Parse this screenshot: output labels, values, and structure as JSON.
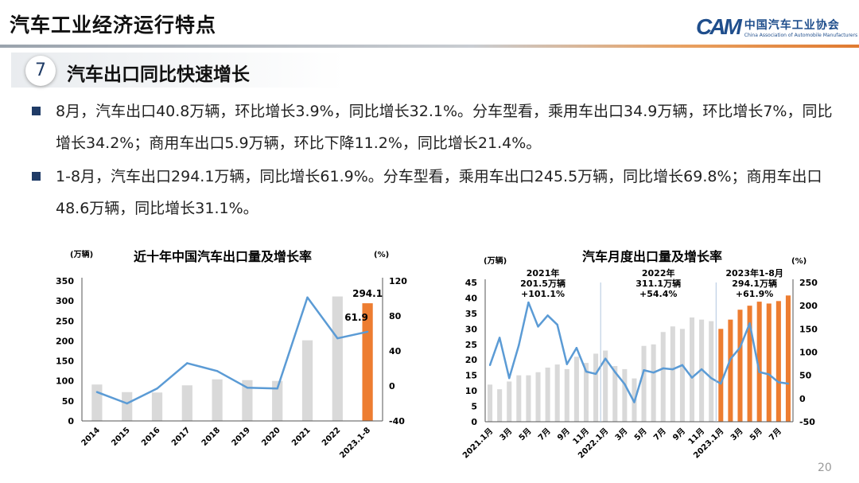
{
  "header": {
    "title": "汽车工业经济运行特点",
    "logo_cn": "中国汽车工业协会",
    "logo_en": "China Association of Automobile Manufacturers",
    "logo_mark": "CAM"
  },
  "section": {
    "number": "7",
    "title": "汽车出口同比快速增长"
  },
  "bullets": [
    "8月，汽车出口40.8万辆，环比增长3.9%，同比增长32.1%。分车型看，乘用车出口34.9万辆，环比增长7%，同比增长34.2%；商用车出口5.9万辆，环比下降11.2%，同比增长21.4%。",
    "1-8月，汽车出口294.1万辆，同比增长61.9%。分车型看，乘用车出口245.5万辆，同比增长69.8%；商用车出口48.6万辆，同比增长31.1%。"
  ],
  "page_number": "20",
  "colors": {
    "bar_gray": "#d9d9d9",
    "bar_orange": "#ed7d31",
    "line_blue": "#5b9bd5",
    "navy": "#1f3b66"
  },
  "chart_data": [
    {
      "type": "bar+line",
      "title": "近十年中国汽车出口量及增长率",
      "ylabel": "(万辆)",
      "y2label": "(%)",
      "categories": [
        "2014",
        "2015",
        "2016",
        "2017",
        "2018",
        "2019",
        "2020",
        "2021",
        "2022",
        "2023.1-8"
      ],
      "series": [
        {
          "name": "出口量",
          "axis": "left",
          "values": [
            91,
            72,
            71,
            89,
            104,
            102,
            100,
            201.5,
            311.1,
            294.1
          ]
        },
        {
          "name": "增长率",
          "axis": "right",
          "values": [
            -7,
            -20,
            -3,
            26,
            17,
            -2,
            -3,
            101.1,
            54.4,
            61.9
          ]
        }
      ],
      "highlight_index": 9,
      "data_labels": [
        "294.1",
        "61.9"
      ],
      "ylim": [
        0,
        350
      ],
      "yticks": [
        "0",
        "50",
        "100",
        "150",
        "200",
        "250",
        "300",
        "350"
      ],
      "y2lim": [
        -40,
        120
      ],
      "y2ticks": [
        "-40",
        "0",
        "40",
        "80",
        "120"
      ]
    },
    {
      "type": "bar+line",
      "title": "汽车月度出口量及增长率",
      "ylabel": "(万辆)",
      "y2label": "(%)",
      "categories": [
        "2021.1月",
        "2月",
        "3月",
        "4月",
        "5月",
        "6月",
        "7月",
        "8月",
        "9月",
        "10月",
        "11月",
        "12月",
        "2022.1月",
        "2月",
        "3月",
        "4月",
        "5月",
        "6月",
        "7月",
        "8月",
        "9月",
        "10月",
        "11月",
        "12月",
        "2023.1月",
        "2月",
        "3月",
        "4月",
        "5月",
        "6月",
        "7月",
        "8月"
      ],
      "tick_labels": [
        "2021.1月",
        "3月",
        "5月",
        "7月",
        "9月",
        "11月",
        "2022.1月",
        "3月",
        "5月",
        "7月",
        "9月",
        "11月",
        "2023.1月",
        "3月",
        "5月",
        "7月"
      ],
      "series": [
        {
          "name": "出口量",
          "axis": "left",
          "values": [
            12,
            10.5,
            13,
            15,
            15,
            16,
            17.5,
            18.5,
            17,
            21,
            19,
            22,
            23,
            18,
            17,
            14,
            24.5,
            25,
            29,
            30.8,
            30,
            33.7,
            33,
            32.5,
            30,
            33,
            36.2,
            37.5,
            38.8,
            38.2,
            39,
            40.8
          ]
        },
        {
          "name": "增长率",
          "axis": "right",
          "values": [
            72,
            131,
            44,
            115,
            207,
            155,
            179,
            159,
            74,
            109,
            58,
            53,
            86,
            57,
            31,
            -8,
            61,
            56,
            65,
            63,
            72,
            45,
            63,
            44,
            32,
            85,
            110,
            162,
            57,
            52,
            35,
            32
          ]
        }
      ],
      "highlight_from_index": 24,
      "annotations": [
        {
          "lines": [
            "2021年",
            "201.5万辆",
            "+101.1%"
          ]
        },
        {
          "lines": [
            "2022年",
            "311.1万辆",
            "+54.4%"
          ]
        },
        {
          "lines": [
            "2023年1-8月",
            "294.1万辆",
            "+61.9%"
          ]
        }
      ],
      "ylim": [
        0,
        45
      ],
      "yticks": [
        "0",
        "5",
        "10",
        "15",
        "20",
        "25",
        "30",
        "35",
        "40",
        "45"
      ],
      "y2lim": [
        -50,
        250
      ],
      "y2ticks": [
        "-50",
        "0",
        "50",
        "100",
        "150",
        "200",
        "250"
      ]
    }
  ]
}
